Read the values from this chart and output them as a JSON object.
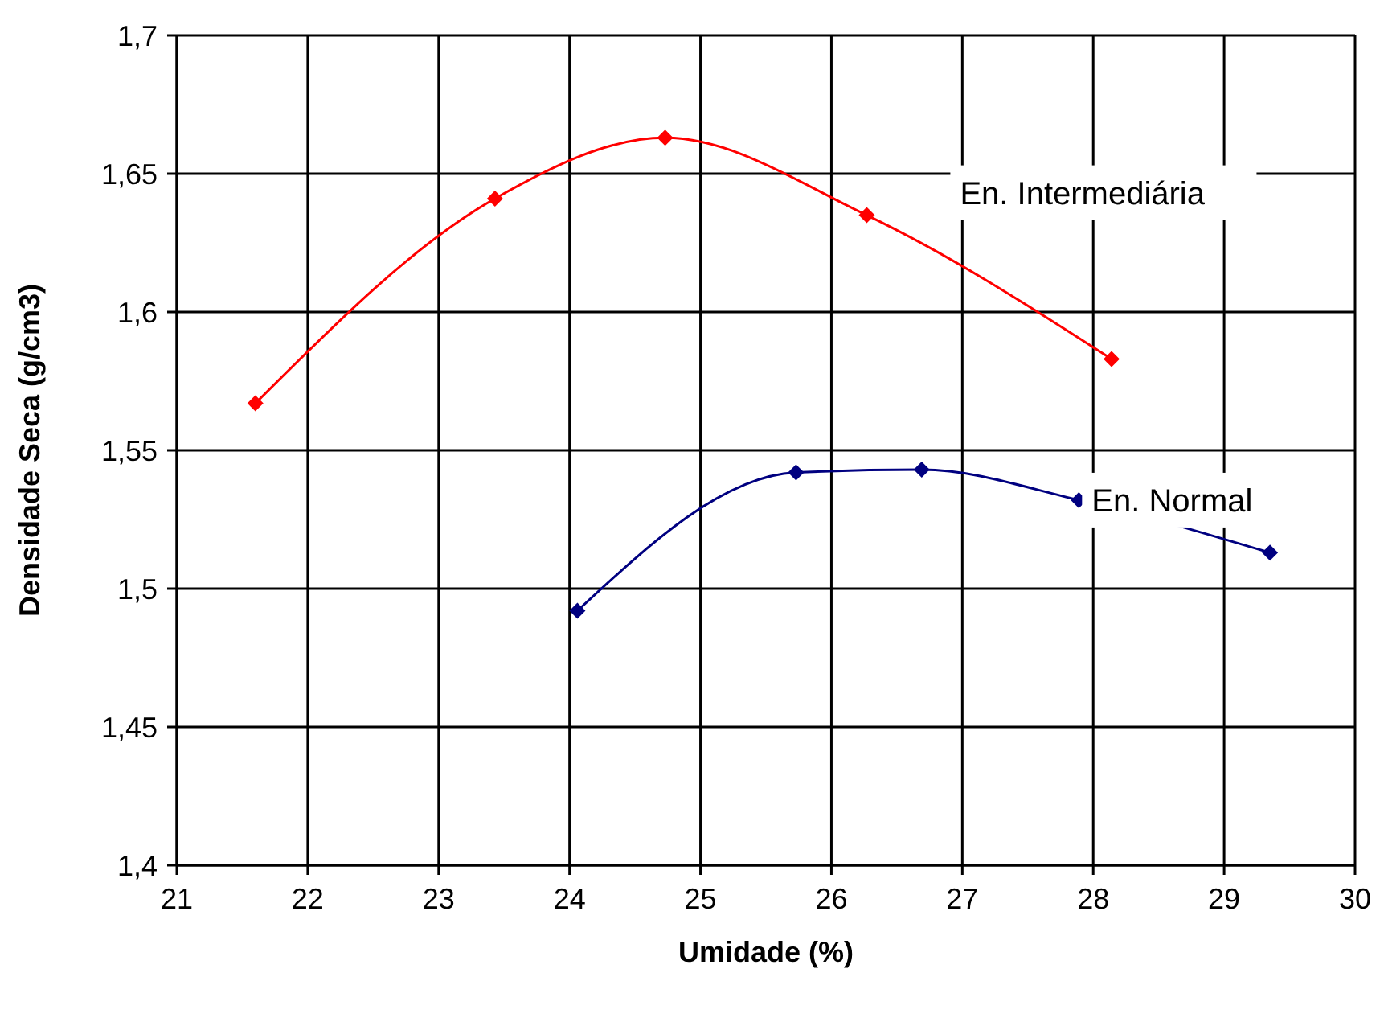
{
  "chart_data": {
    "type": "line",
    "xlabel": "Umidade (%)",
    "ylabel": "Densidade Seca (g/cm3)",
    "xlim": [
      21,
      30
    ],
    "xticks": [
      21,
      22,
      23,
      24,
      25,
      26,
      27,
      28,
      29,
      30
    ],
    "ylim": [
      1.4,
      1.7
    ],
    "yticks": [
      {
        "value": 1.4,
        "label": "1,4"
      },
      {
        "value": 1.45,
        "label": "1,45"
      },
      {
        "value": 1.5,
        "label": "1,5"
      },
      {
        "value": 1.55,
        "label": "1,55"
      },
      {
        "value": 1.6,
        "label": "1,6"
      },
      {
        "value": 1.65,
        "label": "1,65"
      },
      {
        "value": 1.7,
        "label": "1,7"
      }
    ],
    "grid": true,
    "marker": "diamond",
    "line_style": "solid",
    "series": [
      {
        "name": "En. Intermediária",
        "color": "#ff0000",
        "x": [
          21.6,
          23.43,
          24.73,
          26.27,
          28.14
        ],
        "values": [
          1.567,
          1.641,
          1.663,
          1.635,
          1.583
        ]
      },
      {
        "name": "En. Normal",
        "color": "#000080",
        "x": [
          24.06,
          25.73,
          26.69,
          27.89,
          29.35
        ],
        "values": [
          1.492,
          1.542,
          1.543,
          1.532,
          1.513
        ]
      }
    ]
  }
}
